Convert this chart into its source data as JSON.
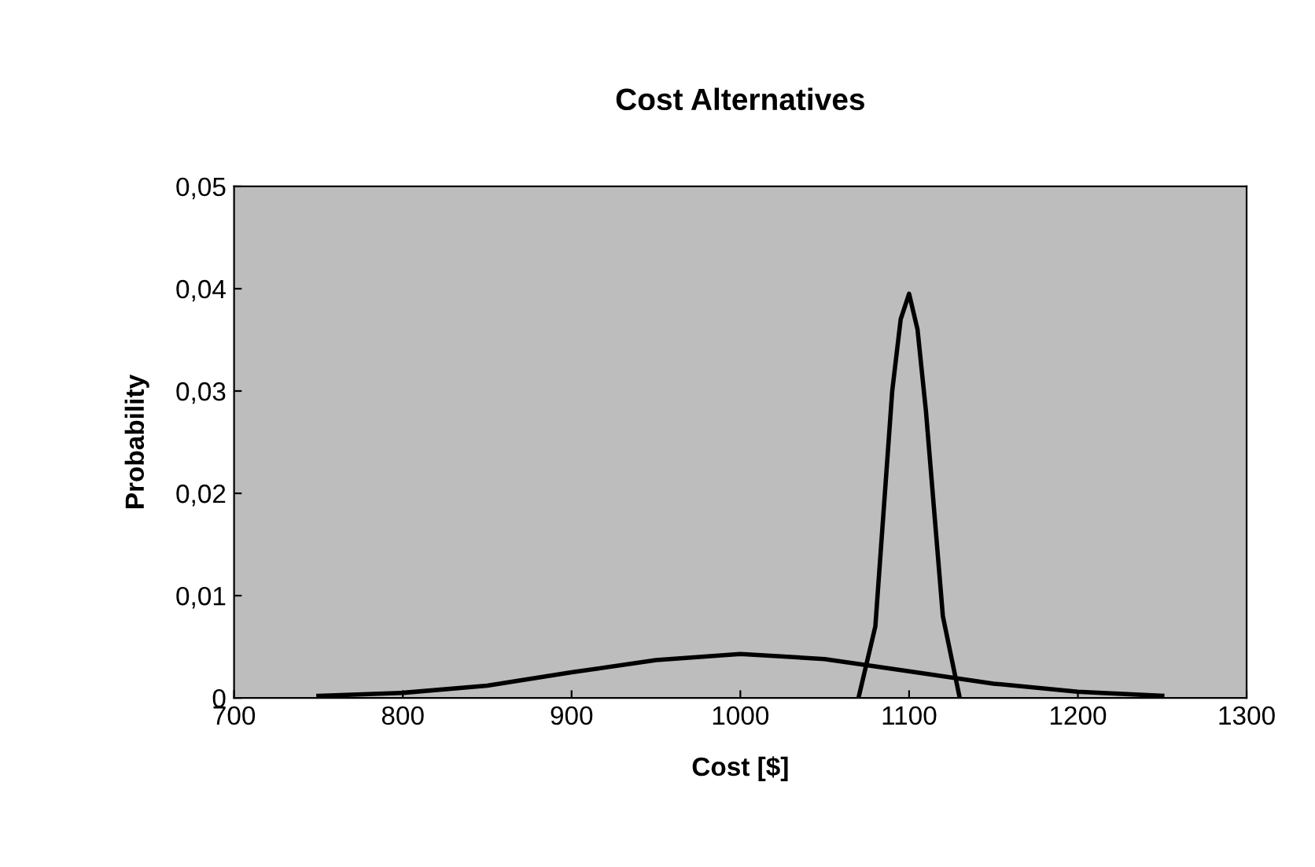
{
  "chart_data": {
    "type": "line",
    "title": "Cost Alternatives",
    "xlabel": "Cost [$]",
    "ylabel": "Probability",
    "xlim": [
      700,
      1300
    ],
    "xticks": [
      700,
      800,
      900,
      1000,
      1100,
      1200,
      1300
    ],
    "ylim": [
      0,
      0.05
    ],
    "yticks": [
      0,
      {
        "value": 0.01,
        "label": "0,01"
      },
      {
        "value": 0.02,
        "label": "0,02"
      },
      {
        "value": 0.03,
        "label": "0,03"
      },
      {
        "value": 0.04,
        "label": "0,04"
      },
      {
        "value": 0.05,
        "label": "0,05"
      }
    ],
    "grid": false,
    "legend": false,
    "marker": "none",
    "line_style": "solid",
    "series": [
      {
        "color": "#000000",
        "x": [
          750,
          800,
          850,
          900,
          950,
          1000,
          1050,
          1100,
          1150,
          1200,
          1250
        ],
        "values": [
          0.0002,
          0.0005,
          0.0012,
          0.0025,
          0.0037,
          0.0043,
          0.0038,
          0.0026,
          0.0014,
          0.0006,
          0.0002
        ]
      },
      {
        "color": "#000000",
        "x": [
          1070,
          1080,
          1090,
          1095,
          1100,
          1105,
          1110,
          1120,
          1130
        ],
        "values": [
          0,
          0.007,
          0.03,
          0.037,
          0.0395,
          0.036,
          0.028,
          0.008,
          0
        ]
      }
    ]
  }
}
